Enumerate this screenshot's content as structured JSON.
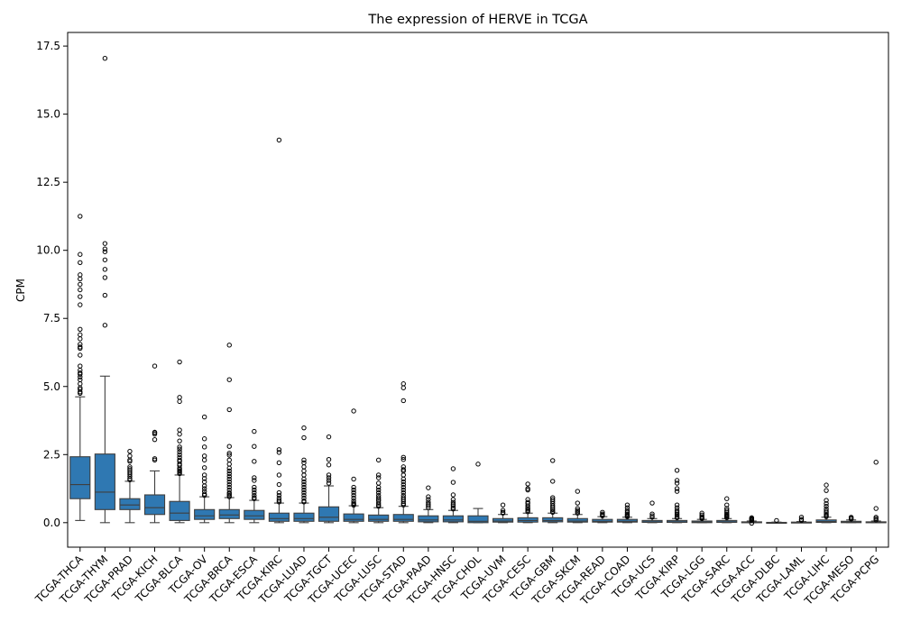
{
  "chart_data": {
    "type": "box",
    "title": "The expression of HERVE in TCGA",
    "xlabel": "",
    "ylabel": "CPM",
    "ylim": [
      -0.9,
      18.0
    ],
    "yticks": [
      0.0,
      2.5,
      5.0,
      7.5,
      10.0,
      12.5,
      15.0,
      17.5
    ],
    "ytick_labels": [
      "0.0",
      "2.5",
      "5.0",
      "7.5",
      "10.0",
      "12.5",
      "15.0",
      "17.5"
    ],
    "box_color": "#2f78b2",
    "grid": false,
    "legend": "none",
    "categories": [
      "TCGA-THCA",
      "TCGA-THYM",
      "TCGA-PRAD",
      "TCGA-KICH",
      "TCGA-BLCA",
      "TCGA-OV",
      "TCGA-BRCA",
      "TCGA-ESCA",
      "TCGA-KIRC",
      "TCGA-LUAD",
      "TCGA-TGCT",
      "TCGA-UCEC",
      "TCGA-LUSC",
      "TCGA-STAD",
      "TCGA-PAAD",
      "TCGA-HNSC",
      "TCGA-CHOL",
      "TCGA-UVM",
      "TCGA-CESC",
      "TCGA-GBM",
      "TCGA-SKCM",
      "TCGA-READ",
      "TCGA-COAD",
      "TCGA-UCS",
      "TCGA-KIRP",
      "TCGA-LGG",
      "TCGA-SARC",
      "TCGA-ACC",
      "TCGA-DLBC",
      "TCGA-LAML",
      "TCGA-LIHC",
      "TCGA-MESO",
      "TCGA-PCPG"
    ],
    "boxes": [
      {
        "min": 0.08,
        "q1": 0.88,
        "median": 1.4,
        "q3": 2.42,
        "max": 4.62,
        "outliers": [
          11.25,
          9.85,
          9.55,
          9.1,
          8.95,
          8.75,
          8.55,
          8.3,
          8.0,
          7.1,
          6.9,
          6.75,
          6.55,
          6.45,
          6.4,
          6.15,
          5.75,
          5.6,
          5.5,
          5.45,
          5.35,
          5.25,
          5.1,
          4.95,
          4.9,
          4.8,
          4.75
        ]
      },
      {
        "min": 0.0,
        "q1": 0.48,
        "median": 1.12,
        "q3": 2.52,
        "max": 5.38,
        "outliers": [
          17.05,
          10.25,
          10.05,
          9.95,
          9.65,
          9.3,
          9.0,
          8.35,
          7.25
        ]
      },
      {
        "min": 0.0,
        "q1": 0.48,
        "median": 0.65,
        "q3": 0.88,
        "max": 1.52,
        "outliers": [
          2.62,
          2.45,
          2.3,
          2.25,
          2.05,
          1.98,
          1.92,
          1.85,
          1.78,
          1.7,
          1.62,
          1.57
        ]
      },
      {
        "min": 0.0,
        "q1": 0.3,
        "median": 0.55,
        "q3": 1.02,
        "max": 1.9,
        "outliers": [
          5.75,
          3.32,
          3.3,
          3.25,
          3.05,
          2.35,
          2.3
        ]
      },
      {
        "min": 0.0,
        "q1": 0.08,
        "median": 0.35,
        "q3": 0.78,
        "max": 1.75,
        "outliers": [
          5.9,
          4.6,
          4.45,
          3.4,
          3.25,
          3.0,
          2.78,
          2.7,
          2.6,
          2.5,
          2.4,
          2.3,
          2.25,
          2.15,
          2.1,
          2.0,
          1.95,
          1.9,
          1.85,
          1.8
        ]
      },
      {
        "min": 0.0,
        "q1": 0.12,
        "median": 0.25,
        "q3": 0.48,
        "max": 0.95,
        "outliers": [
          3.88,
          3.08,
          2.78,
          2.45,
          2.3,
          2.02,
          1.75,
          1.62,
          1.5,
          1.35,
          1.25,
          1.15,
          1.05,
          1.0
        ]
      },
      {
        "min": 0.0,
        "q1": 0.15,
        "median": 0.28,
        "q3": 0.48,
        "max": 0.92,
        "outliers": [
          6.52,
          5.25,
          4.15,
          2.8,
          2.55,
          2.48,
          2.3,
          2.15,
          2.0,
          1.9,
          1.8,
          1.7,
          1.6,
          1.5,
          1.4,
          1.3,
          1.2,
          1.1,
          1.05,
          1.0,
          0.95
        ]
      },
      {
        "min": 0.0,
        "q1": 0.12,
        "median": 0.25,
        "q3": 0.45,
        "max": 0.82,
        "outliers": [
          3.35,
          2.8,
          2.25,
          1.65,
          1.55,
          1.3,
          1.2,
          1.1,
          1.0,
          0.92,
          0.88
        ]
      },
      {
        "min": 0.0,
        "q1": 0.05,
        "median": 0.15,
        "q3": 0.35,
        "max": 0.72,
        "outliers": [
          14.05,
          2.68,
          2.58,
          2.2,
          1.75,
          1.4,
          1.1,
          1.0,
          0.9,
          0.82,
          0.76
        ]
      },
      {
        "min": 0.0,
        "q1": 0.05,
        "median": 0.15,
        "q3": 0.35,
        "max": 0.72,
        "outliers": [
          3.48,
          3.12,
          2.3,
          2.2,
          2.05,
          1.9,
          1.75,
          1.6,
          1.5,
          1.4,
          1.3,
          1.2,
          1.1,
          1.0,
          0.9,
          0.8,
          0.76
        ]
      },
      {
        "min": 0.0,
        "q1": 0.05,
        "median": 0.2,
        "q3": 0.58,
        "max": 1.35,
        "outliers": [
          3.15,
          2.32,
          2.12,
          1.75,
          1.65,
          1.55,
          1.45
        ]
      },
      {
        "min": 0.0,
        "q1": 0.05,
        "median": 0.12,
        "q3": 0.32,
        "max": 0.62,
        "outliers": [
          4.1,
          1.6,
          1.3,
          1.2,
          1.1,
          1.0,
          0.9,
          0.8,
          0.72,
          0.68,
          0.64
        ]
      },
      {
        "min": 0.0,
        "q1": 0.05,
        "median": 0.12,
        "q3": 0.28,
        "max": 0.55,
        "outliers": [
          2.3,
          1.75,
          1.65,
          1.45,
          1.3,
          1.2,
          1.1,
          1.0,
          0.92,
          0.85,
          0.8,
          0.72,
          0.65,
          0.6
        ]
      },
      {
        "min": 0.0,
        "q1": 0.05,
        "median": 0.12,
        "q3": 0.3,
        "max": 0.6,
        "outliers": [
          5.1,
          4.95,
          4.48,
          2.4,
          2.32,
          2.05,
          1.95,
          1.9,
          1.75,
          1.6,
          1.5,
          1.4,
          1.3,
          1.2,
          1.1,
          1.0,
          0.92,
          0.85,
          0.78,
          0.7,
          0.65
        ]
      },
      {
        "min": 0.0,
        "q1": 0.03,
        "median": 0.1,
        "q3": 0.25,
        "max": 0.48,
        "outliers": [
          1.28,
          0.95,
          0.85,
          0.75,
          0.68,
          0.62,
          0.55
        ]
      },
      {
        "min": 0.0,
        "q1": 0.03,
        "median": 0.1,
        "q3": 0.25,
        "max": 0.45,
        "outliers": [
          1.98,
          1.48,
          1.02,
          0.85,
          0.75,
          0.68,
          0.62,
          0.55,
          0.5
        ]
      },
      {
        "min": 0.0,
        "q1": 0.0,
        "median": 0.05,
        "q3": 0.25,
        "max": 0.52,
        "outliers": [
          2.15
        ]
      },
      {
        "min": 0.0,
        "q1": 0.02,
        "median": 0.06,
        "q3": 0.15,
        "max": 0.3,
        "outliers": [
          0.65,
          0.45,
          0.38,
          0.35
        ]
      },
      {
        "min": 0.0,
        "q1": 0.02,
        "median": 0.08,
        "q3": 0.18,
        "max": 0.35,
        "outliers": [
          1.42,
          1.25,
          1.2,
          0.85,
          0.75,
          0.7,
          0.62,
          0.55,
          0.5,
          0.45,
          0.4
        ]
      },
      {
        "min": 0.0,
        "q1": 0.03,
        "median": 0.08,
        "q3": 0.18,
        "max": 0.35,
        "outliers": [
          2.28,
          1.52,
          0.92,
          0.85,
          0.78,
          0.7,
          0.62,
          0.55,
          0.48,
          0.42,
          0.38
        ]
      },
      {
        "min": 0.0,
        "q1": 0.02,
        "median": 0.06,
        "q3": 0.15,
        "max": 0.3,
        "outliers": [
          1.15,
          0.72,
          0.52,
          0.45,
          0.4,
          0.35
        ]
      },
      {
        "min": 0.0,
        "q1": 0.02,
        "median": 0.05,
        "q3": 0.12,
        "max": 0.22,
        "outliers": [
          0.38,
          0.32,
          0.28,
          0.25
        ]
      },
      {
        "min": 0.0,
        "q1": 0.02,
        "median": 0.05,
        "q3": 0.12,
        "max": 0.2,
        "outliers": [
          0.65,
          0.55,
          0.45,
          0.38,
          0.32,
          0.28,
          0.25,
          0.22
        ]
      },
      {
        "min": 0.0,
        "q1": 0.01,
        "median": 0.03,
        "q3": 0.08,
        "max": 0.15,
        "outliers": [
          0.72,
          0.32,
          0.25,
          0.2
        ]
      },
      {
        "min": 0.0,
        "q1": 0.01,
        "median": 0.03,
        "q3": 0.08,
        "max": 0.15,
        "outliers": [
          1.92,
          1.55,
          1.45,
          1.25,
          1.15,
          0.65,
          0.55,
          0.45,
          0.38,
          0.32,
          0.28,
          0.22,
          0.18
        ]
      },
      {
        "min": 0.0,
        "q1": 0.0,
        "median": 0.02,
        "q3": 0.06,
        "max": 0.12,
        "outliers": [
          0.35,
          0.28,
          0.22,
          0.18,
          0.15
        ]
      },
      {
        "min": 0.0,
        "q1": 0.01,
        "median": 0.03,
        "q3": 0.08,
        "max": 0.15,
        "outliers": [
          0.88,
          0.65,
          0.52,
          0.45,
          0.38,
          0.32,
          0.28,
          0.25,
          0.22,
          0.18
        ]
      },
      {
        "min": 0.0,
        "q1": 0.0,
        "median": 0.01,
        "q3": 0.03,
        "max": 0.06,
        "outliers": [
          0.18,
          0.15,
          0.12,
          0.1,
          0.08,
          -0.02
        ]
      },
      {
        "min": 0.0,
        "q1": 0.0,
        "median": 0.0,
        "q3": 0.01,
        "max": 0.02,
        "outliers": [
          0.08
        ]
      },
      {
        "min": 0.0,
        "q1": 0.0,
        "median": 0.01,
        "q3": 0.02,
        "max": 0.04,
        "outliers": [
          0.2,
          0.12,
          0.08
        ]
      },
      {
        "min": 0.0,
        "q1": 0.01,
        "median": 0.04,
        "q3": 0.1,
        "max": 0.2,
        "outliers": [
          1.38,
          1.18,
          0.82,
          0.7,
          0.6,
          0.5,
          0.42,
          0.36,
          0.3,
          0.26,
          0.22
        ]
      },
      {
        "min": 0.0,
        "q1": 0.0,
        "median": 0.02,
        "q3": 0.05,
        "max": 0.1,
        "outliers": [
          0.2,
          0.16,
          0.13
        ]
      },
      {
        "min": 0.0,
        "q1": 0.0,
        "median": 0.01,
        "q3": 0.03,
        "max": 0.06,
        "outliers": [
          2.22,
          0.52,
          0.2,
          0.15,
          0.1
        ]
      }
    ]
  }
}
